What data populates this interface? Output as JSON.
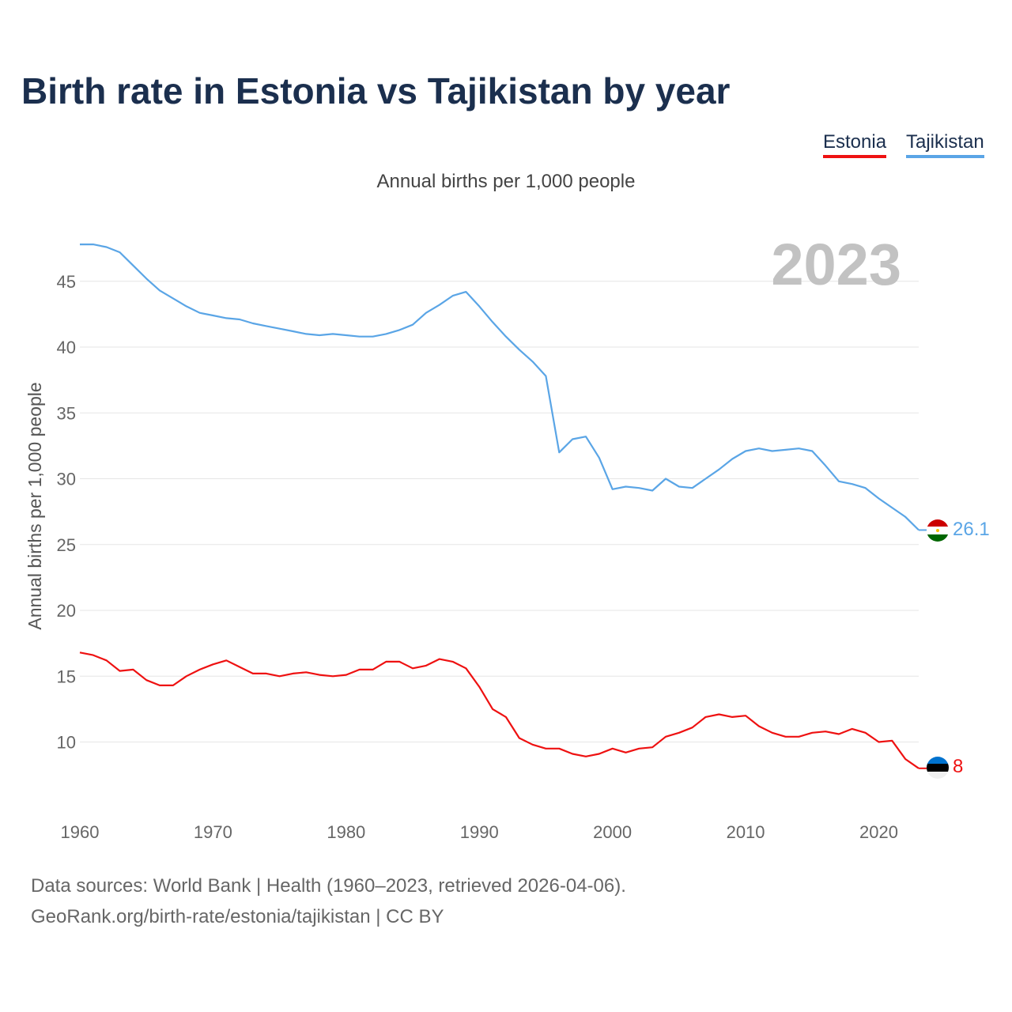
{
  "title": "Birth rate in Estonia vs Tajikistan by year",
  "legend": [
    {
      "name": "Estonia",
      "color": "#ee1111"
    },
    {
      "name": "Tajikistan",
      "color": "#5aa5e6"
    }
  ],
  "subtitle": "Annual births per 1,000 people",
  "chart_data": {
    "type": "line",
    "title": "Birth rate in Estonia vs Tajikistan by year",
    "subtitle": "Annual births per 1,000 people",
    "xlabel": "",
    "ylabel": "Annual births per 1,000 people",
    "year_label": "2023",
    "xlim": [
      1960,
      2023
    ],
    "ylim": [
      5.5,
      49
    ],
    "x_ticks": [
      1960,
      1970,
      1980,
      1990,
      2000,
      2010,
      2020
    ],
    "y_ticks": [
      10,
      15,
      20,
      25,
      30,
      35,
      40,
      45
    ],
    "grid": true,
    "x": [
      1960,
      1961,
      1962,
      1963,
      1964,
      1965,
      1966,
      1967,
      1968,
      1969,
      1970,
      1971,
      1972,
      1973,
      1974,
      1975,
      1976,
      1977,
      1978,
      1979,
      1980,
      1981,
      1982,
      1983,
      1984,
      1985,
      1986,
      1987,
      1988,
      1989,
      1990,
      1991,
      1992,
      1993,
      1994,
      1995,
      1996,
      1997,
      1998,
      1999,
      2000,
      2001,
      2002,
      2003,
      2004,
      2005,
      2006,
      2007,
      2008,
      2009,
      2010,
      2011,
      2012,
      2013,
      2014,
      2015,
      2016,
      2017,
      2018,
      2019,
      2020,
      2021,
      2022,
      2023
    ],
    "series": [
      {
        "name": "Tajikistan",
        "color": "#5aa5e6",
        "end_label": "26.1",
        "values": [
          47.8,
          47.8,
          47.6,
          47.2,
          46.2,
          45.2,
          44.3,
          43.7,
          43.1,
          42.6,
          42.4,
          42.2,
          42.1,
          41.8,
          41.6,
          41.4,
          41.2,
          41.0,
          40.9,
          41.0,
          40.9,
          40.8,
          40.8,
          41.0,
          41.3,
          41.7,
          42.6,
          43.2,
          43.9,
          44.2,
          43.1,
          41.9,
          40.8,
          39.8,
          38.9,
          37.8,
          32.0,
          33.0,
          33.2,
          31.6,
          29.2,
          29.4,
          29.3,
          29.1,
          30.0,
          29.4,
          29.3,
          30.0,
          30.7,
          31.5,
          32.1,
          32.3,
          32.1,
          32.2,
          32.3,
          32.1,
          31.0,
          29.8,
          29.6,
          29.3,
          28.5,
          27.8,
          27.1,
          26.1
        ]
      },
      {
        "name": "Estonia",
        "color": "#ee1111",
        "end_label": "8",
        "values": [
          16.8,
          16.6,
          16.2,
          15.4,
          15.5,
          14.7,
          14.3,
          14.3,
          15.0,
          15.5,
          15.9,
          16.2,
          15.7,
          15.2,
          15.2,
          15.0,
          15.2,
          15.3,
          15.1,
          15.0,
          15.1,
          15.5,
          15.5,
          16.1,
          16.1,
          15.6,
          15.8,
          16.3,
          16.1,
          15.6,
          14.2,
          12.5,
          11.9,
          10.3,
          9.8,
          9.5,
          9.5,
          9.1,
          8.9,
          9.1,
          9.5,
          9.2,
          9.5,
          9.6,
          10.4,
          10.7,
          11.1,
          11.9,
          12.1,
          11.9,
          12.0,
          11.2,
          10.7,
          10.4,
          10.4,
          10.7,
          10.8,
          10.6,
          11.0,
          10.7,
          10.0,
          10.1,
          8.7,
          8.0
        ]
      }
    ]
  },
  "footer": {
    "sources": "Data sources: World Bank | Health (1960–2023, retrieved 2026-04-06).",
    "credit": "GeoRank.org/birth-rate/estonia/tajikistan | CC BY"
  }
}
